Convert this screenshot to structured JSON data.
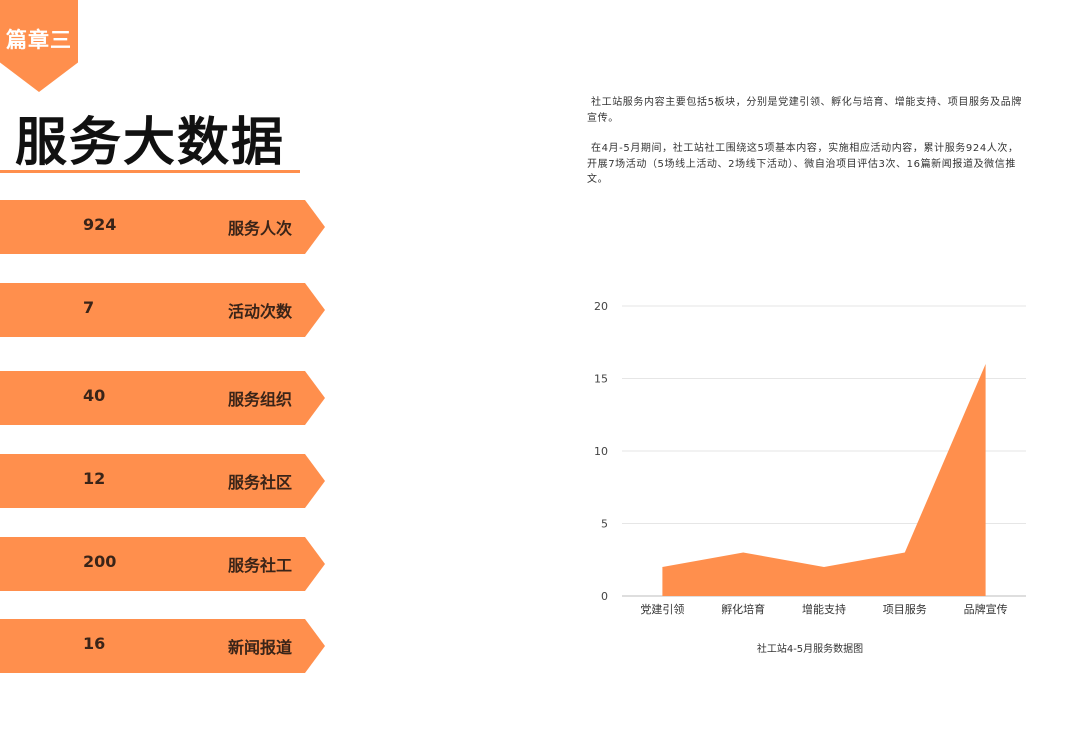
{
  "chapter_badge": "篇章三",
  "page_title": "服务大数据",
  "stats": [
    {
      "value": "924",
      "label": "服务人次"
    },
    {
      "value": "7",
      "label": "活动次数"
    },
    {
      "value": "40",
      "label": "服务组织"
    },
    {
      "value": "12",
      "label": "服务社区"
    },
    {
      "value": "200",
      "label": "服务社工"
    },
    {
      "value": "16",
      "label": "新闻报道"
    }
  ],
  "intro": {
    "paragraph1": "社工站服务内容主要包括5板块，分别是党建引领、孵化与培育、增能支持、项目服务及品牌宣传。",
    "paragraph2": "在4月-5月期间，社工站社工围绕这5项基本内容，实施相应活动内容，累计服务924人次，开展7场活动（5场线上活动、2场线下活动）、微自治项目评估3次、16篇新闻报道及微信推文。"
  },
  "colors": {
    "accent": "#ff8f4d",
    "stat_text": "#3a2418"
  },
  "chart_data": {
    "type": "area",
    "title": "社工站4-5月服务数据图",
    "categories": [
      "党建引领",
      "孵化培育",
      "增能支持",
      "项目服务",
      "品牌宣传"
    ],
    "values": [
      2,
      3,
      2,
      3,
      16
    ],
    "ylim": [
      0,
      20
    ],
    "yticks": [
      0,
      5,
      10,
      15,
      20
    ],
    "xlabel": "",
    "ylabel": "",
    "grid": true,
    "legend": "none",
    "color": "#ff8f4d"
  }
}
